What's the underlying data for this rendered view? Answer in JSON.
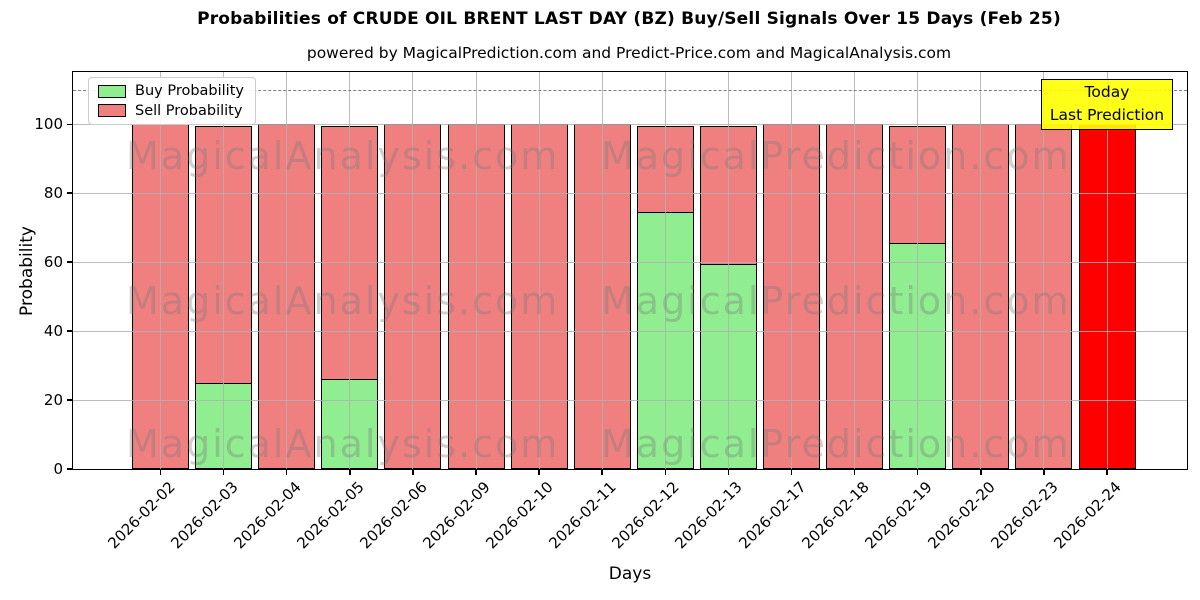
{
  "title": "Probabilities of CRUDE OIL BRENT LAST DAY (BZ) Buy/Sell Signals Over 15 Days (Feb 25)",
  "subtitle": "powered by MagicalPrediction.com and Predict-Price.com and MagicalAnalysis.com",
  "legend": [
    {
      "label": "Buy Probability",
      "color": "#90EE90"
    },
    {
      "label": "Sell Probability",
      "color": "#F08080"
    }
  ],
  "annotation": {
    "lines": [
      "Today",
      "Last Prediction"
    ],
    "bg_color": "#FFFF00"
  },
  "watermarks": {
    "left_text": "MagicalAnalysis.com",
    "right_text": "MagicalPrediction.com"
  },
  "chart_data": {
    "type": "bar",
    "stacked": true,
    "title": "Probabilities of CRUDE OIL BRENT LAST DAY (BZ) Buy/Sell Signals Over 15 Days (Feb 25)",
    "xlabel": "Days",
    "ylabel": "Probability",
    "categories": [
      "2026-02-02",
      "2026-02-03",
      "2026-02-04",
      "2026-02-05",
      "2026-02-06",
      "2026-02-09",
      "2026-02-10",
      "2026-02-11",
      "2026-02-12",
      "2026-02-13",
      "2026-02-17",
      "2026-02-18",
      "2026-02-19",
      "2026-02-20",
      "2026-02-23",
      "2026-02-24"
    ],
    "series": [
      {
        "name": "Buy Probability",
        "color": "#90EE90",
        "values": [
          0,
          25,
          0,
          26,
          0,
          0,
          0,
          0,
          74.5,
          59.5,
          0,
          0,
          65.5,
          0,
          0,
          0
        ]
      },
      {
        "name": "Sell Probability",
        "color": "#F08080",
        "values": [
          100,
          75,
          100,
          74,
          100,
          100,
          100,
          100,
          25.5,
          40.5,
          100,
          100,
          34.5,
          100,
          100,
          100
        ]
      }
    ],
    "today_bar": {
      "index": 15,
      "category": "2026-02-24",
      "value": 100,
      "color": "#FF0000"
    },
    "yticks": [
      0,
      20,
      40,
      60,
      80,
      100
    ],
    "ylim": [
      0,
      115
    ],
    "dashed_line_y": 110,
    "grid": true,
    "bar_edge_color": "#000000",
    "legend_position": "upper left"
  }
}
